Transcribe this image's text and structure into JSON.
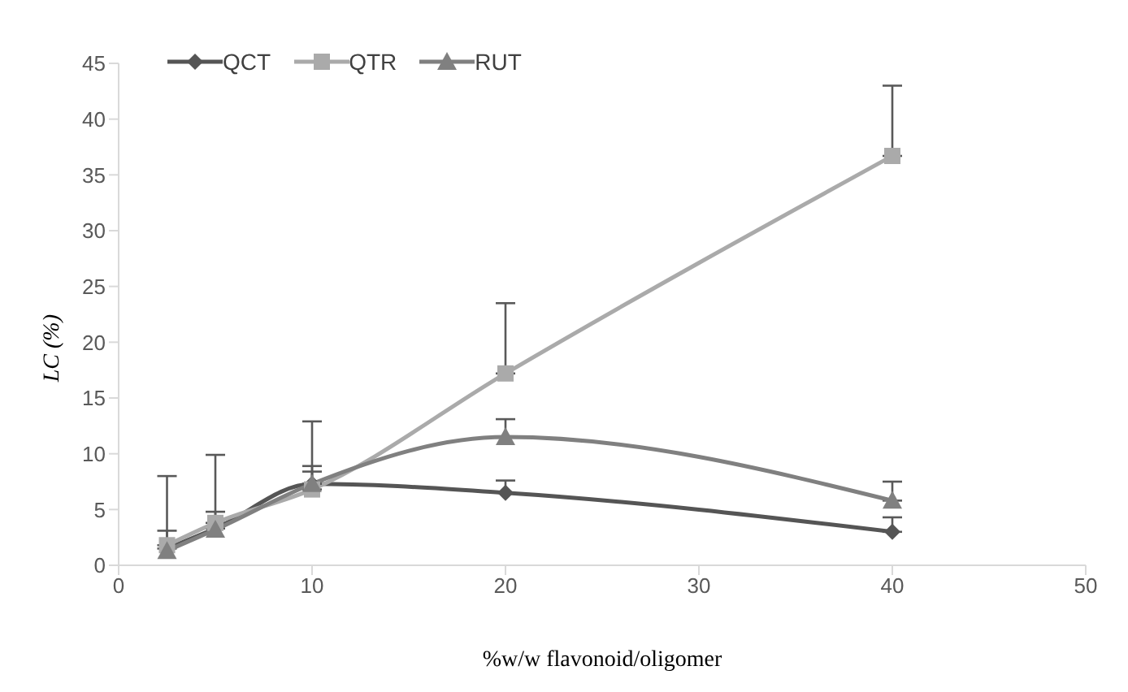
{
  "chart_data": {
    "type": "line",
    "xlabel": "%w/w flavonoid/oligomer",
    "ylabel": "LC (%)",
    "x": [
      2.5,
      5,
      10,
      20,
      40
    ],
    "series": [
      {
        "name": "QCT",
        "color": "#555555",
        "marker": "diamond",
        "values": [
          1.5,
          3.3,
          7.3,
          6.5,
          3.0
        ],
        "errors": [
          [
            1.5,
            3.1
          ],
          [
            3.3,
            4.8
          ],
          [
            7.3,
            8.4
          ],
          [
            6.5,
            7.6
          ],
          [
            3.0,
            4.3
          ]
        ]
      },
      {
        "name": "QTR",
        "color": "#aaaaaa",
        "marker": "square",
        "values": [
          1.8,
          3.8,
          6.8,
          17.2,
          36.7
        ],
        "errors": [
          [
            1.8,
            8.0
          ],
          [
            3.8,
            9.9
          ],
          [
            6.8,
            12.9
          ],
          [
            17.2,
            23.5
          ],
          [
            36.7,
            43
          ]
        ]
      },
      {
        "name": "RUT",
        "color": "#808080",
        "marker": "triangle",
        "values": [
          1.3,
          3.2,
          7.3,
          11.5,
          5.8
        ],
        "errors": [
          null,
          null,
          [
            7.3,
            8.9
          ],
          [
            11.5,
            13.1
          ],
          [
            5.8,
            7.5
          ]
        ]
      }
    ],
    "xlim": [
      0,
      50
    ],
    "xticks": [
      0,
      10,
      20,
      30,
      40,
      50
    ],
    "ylim": [
      0,
      45
    ],
    "yticks": [
      0,
      5,
      10,
      15,
      20,
      25,
      30,
      35,
      40,
      45
    ],
    "grid": false,
    "legend": "top left"
  }
}
